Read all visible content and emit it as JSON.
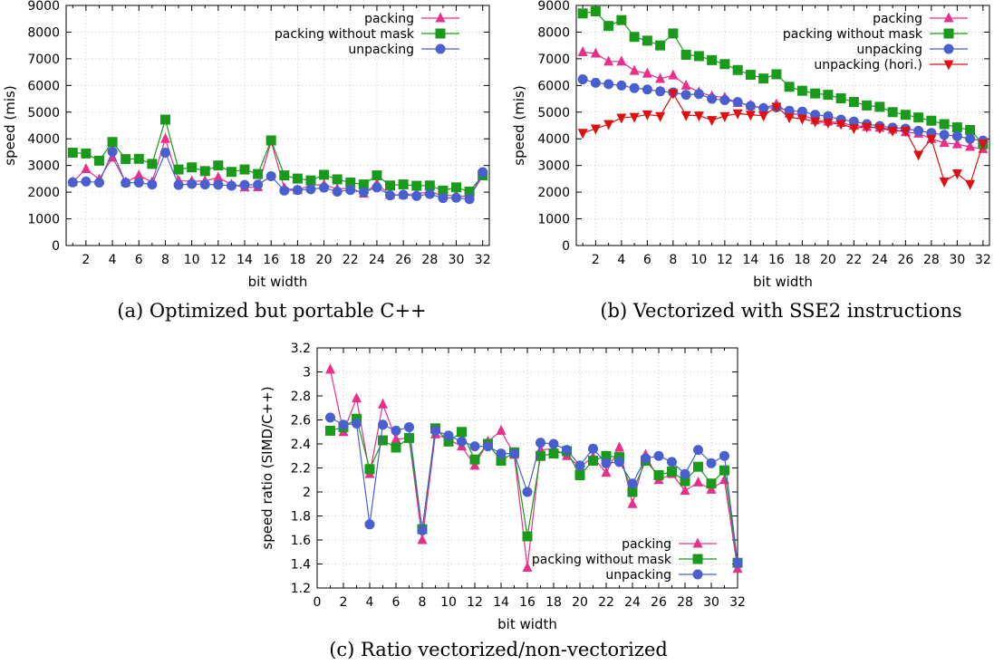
{
  "chart_data": [
    {
      "id": "a",
      "type": "line",
      "caption": "(a) Optimized but portable C++",
      "xlabel": "bit width",
      "ylabel": "speed (mis)",
      "xlim": [
        0.5,
        32.5
      ],
      "ylim": [
        0,
        9000
      ],
      "xticks": [
        2,
        4,
        6,
        8,
        10,
        12,
        14,
        16,
        18,
        20,
        22,
        24,
        26,
        28,
        30,
        32
      ],
      "yticks": [
        0,
        1000,
        2000,
        3000,
        4000,
        5000,
        6000,
        7000,
        8000,
        9000
      ],
      "legend_position": "top-right",
      "x": [
        1,
        2,
        3,
        4,
        5,
        6,
        7,
        8,
        9,
        10,
        11,
        12,
        13,
        14,
        15,
        16,
        17,
        18,
        19,
        20,
        21,
        22,
        23,
        24,
        25,
        26,
        27,
        28,
        29,
        30,
        31,
        32
      ],
      "series": [
        {
          "name": "packing",
          "color": "#e8308a",
          "marker": "triangle-up",
          "values": [
            2380,
            2870,
            2480,
            3300,
            2370,
            2630,
            2380,
            4000,
            2430,
            2410,
            2420,
            2550,
            2290,
            2180,
            2190,
            3900,
            2150,
            2080,
            2260,
            2280,
            2120,
            2150,
            1950,
            2320,
            1900,
            1900,
            1950,
            2000,
            1880,
            1870,
            1830,
            2600
          ]
        },
        {
          "name": "packing without mask",
          "color": "#1a9a1a",
          "marker": "square",
          "values": [
            3480,
            3450,
            3180,
            3880,
            3240,
            3250,
            3060,
            4720,
            2850,
            2930,
            2790,
            3000,
            2760,
            2850,
            2680,
            3940,
            2630,
            2510,
            2440,
            2650,
            2480,
            2360,
            2290,
            2630,
            2250,
            2290,
            2240,
            2250,
            2060,
            2180,
            2020,
            2630
          ]
        },
        {
          "name": "unpacking",
          "color": "#4a5fcf",
          "marker": "circle",
          "values": [
            2370,
            2400,
            2360,
            3520,
            2350,
            2360,
            2290,
            3480,
            2270,
            2310,
            2290,
            2280,
            2240,
            2270,
            2280,
            2600,
            2060,
            2080,
            2110,
            2170,
            2020,
            2080,
            2000,
            2180,
            1880,
            1900,
            1860,
            1930,
            1780,
            1790,
            1740,
            2750
          ]
        }
      ]
    },
    {
      "id": "b",
      "type": "line",
      "caption": "(b) Vectorized with SSE2 instructions",
      "xlabel": "bit width",
      "ylabel": "speed (mis)",
      "xlim": [
        0.5,
        32.5
      ],
      "ylim": [
        0,
        9000
      ],
      "xticks": [
        2,
        4,
        6,
        8,
        10,
        12,
        14,
        16,
        18,
        20,
        22,
        24,
        26,
        28,
        30,
        32
      ],
      "yticks": [
        0,
        1000,
        2000,
        3000,
        4000,
        5000,
        6000,
        7000,
        8000,
        9000
      ],
      "legend_position": "top-right",
      "x": [
        1,
        2,
        3,
        4,
        5,
        6,
        7,
        8,
        9,
        10,
        11,
        12,
        13,
        14,
        15,
        16,
        17,
        18,
        19,
        20,
        21,
        22,
        23,
        24,
        25,
        26,
        27,
        28,
        29,
        30,
        31,
        32
      ],
      "series": [
        {
          "name": "packing",
          "color": "#e8308a",
          "marker": "triangle-up",
          "values": [
            7250,
            7200,
            6900,
            6900,
            6550,
            6450,
            6250,
            6380,
            6000,
            5750,
            5600,
            5550,
            5350,
            5250,
            5150,
            5300,
            4950,
            4900,
            4700,
            4650,
            4600,
            4500,
            4450,
            4420,
            4350,
            4250,
            4200,
            4000,
            3850,
            3800,
            3700,
            3620
          ]
        },
        {
          "name": "packing without mask",
          "color": "#1a9a1a",
          "marker": "square",
          "values": [
            8700,
            8780,
            8230,
            8450,
            7820,
            7680,
            7500,
            7950,
            7150,
            7100,
            6950,
            6800,
            6580,
            6400,
            6260,
            6420,
            5950,
            5800,
            5700,
            5650,
            5520,
            5380,
            5250,
            5200,
            5000,
            4900,
            4800,
            4680,
            4550,
            4430,
            4330,
            3800
          ]
        },
        {
          "name": "unpacking",
          "color": "#4a5fcf",
          "marker": "circle",
          "values": [
            6230,
            6100,
            6050,
            6000,
            5900,
            5850,
            5780,
            5740,
            5650,
            5680,
            5500,
            5450,
            5380,
            5230,
            5150,
            5180,
            5050,
            5020,
            4900,
            4850,
            4720,
            4650,
            4550,
            4480,
            4420,
            4380,
            4300,
            4220,
            4150,
            4100,
            4000,
            3930
          ]
        },
        {
          "name": "unpacking (hori.)",
          "color": "#e01010",
          "marker": "triangle-down",
          "values": [
            4220,
            4380,
            4550,
            4790,
            4820,
            4910,
            4850,
            5700,
            4880,
            4870,
            4700,
            4850,
            4950,
            4900,
            4870,
            5200,
            4800,
            4750,
            4650,
            4600,
            4550,
            4400,
            4450,
            4400,
            4300,
            4300,
            3400,
            4000,
            2400,
            2700,
            2300,
            3820
          ]
        }
      ]
    },
    {
      "id": "c",
      "type": "line",
      "caption": "(c) Ratio vectorized/non-vectorized",
      "xlabel": "bit width",
      "ylabel": "speed ratio (SIMD/C++)",
      "xlim": [
        0,
        32
      ],
      "ylim": [
        1.2,
        3.2
      ],
      "xticks": [
        0,
        2,
        4,
        6,
        8,
        10,
        12,
        14,
        16,
        18,
        20,
        22,
        24,
        26,
        28,
        30,
        32
      ],
      "yticks": [
        1.2,
        1.4,
        1.6,
        1.8,
        2,
        2.2,
        2.4,
        2.6,
        2.8,
        3,
        3.2
      ],
      "legend_position": "bottom-right",
      "x": [
        1,
        2,
        3,
        4,
        5,
        6,
        7,
        8,
        9,
        10,
        11,
        12,
        13,
        14,
        15,
        16,
        17,
        18,
        19,
        20,
        21,
        22,
        23,
        24,
        25,
        26,
        27,
        28,
        29,
        30,
        31,
        32
      ],
      "series": [
        {
          "name": "packing",
          "color": "#e8308a",
          "marker": "triangle-up",
          "values": [
            3.02,
            2.5,
            2.78,
            2.15,
            2.73,
            2.44,
            2.45,
            1.6,
            2.48,
            2.44,
            2.38,
            2.22,
            2.42,
            2.51,
            2.31,
            1.37,
            2.35,
            2.36,
            2.3,
            2.21,
            2.29,
            2.16,
            2.37,
            1.9,
            2.31,
            2.1,
            2.15,
            2.01,
            2.08,
            2.02,
            2.1,
            1.36
          ]
        },
        {
          "name": "packing without mask",
          "color": "#1a9a1a",
          "marker": "square",
          "values": [
            2.51,
            2.54,
            2.61,
            2.19,
            2.43,
            2.37,
            2.45,
            1.69,
            2.53,
            2.42,
            2.5,
            2.27,
            2.4,
            2.26,
            2.33,
            1.63,
            2.3,
            2.32,
            2.34,
            2.14,
            2.26,
            2.3,
            2.29,
            2.0,
            2.26,
            2.14,
            2.17,
            2.09,
            2.21,
            2.07,
            2.18,
            1.41
          ]
        },
        {
          "name": "unpacking",
          "color": "#4a5fcf",
          "marker": "circle",
          "values": [
            2.62,
            2.56,
            2.57,
            1.73,
            2.56,
            2.51,
            2.54,
            1.68,
            2.51,
            2.47,
            2.42,
            2.38,
            2.38,
            2.32,
            2.32,
            2.0,
            2.41,
            2.4,
            2.35,
            2.22,
            2.36,
            2.24,
            2.25,
            2.07,
            2.28,
            2.3,
            2.25,
            2.15,
            2.35,
            2.24,
            2.3,
            1.41
          ]
        }
      ]
    }
  ]
}
